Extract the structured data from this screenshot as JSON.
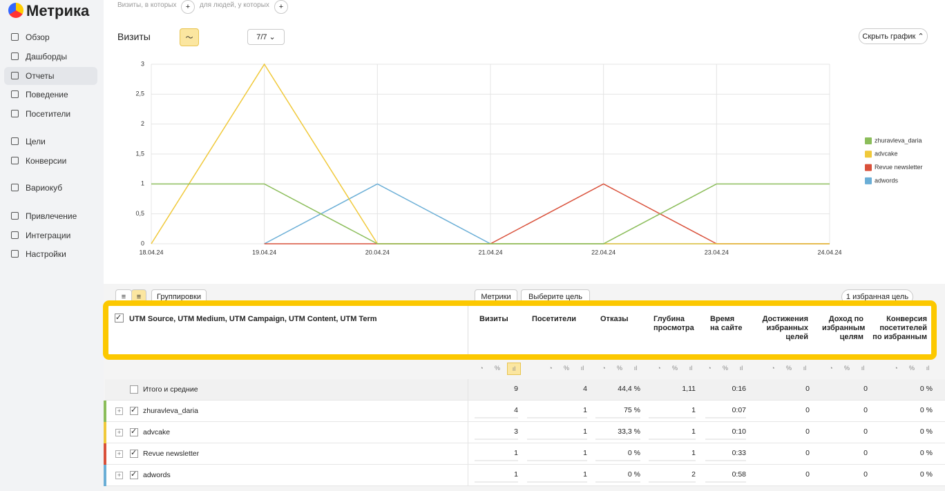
{
  "sidebar": {
    "logo": "Метрика",
    "nav": [
      "Обзор",
      "Дашборды",
      "Отчеты",
      "Поведение",
      "Посетители",
      "Цели",
      "Конверсии",
      "Вариокуб",
      "Привлечение",
      "Интеграции",
      "Настройки"
    ],
    "active": 2
  },
  "filters": [
    "Визиты, в которых",
    "для людей, у которых"
  ],
  "chart_header": {
    "title": "Визиты",
    "segments": "7/7",
    "hide_button": "Скрыть график"
  },
  "chart_data": {
    "type": "line",
    "categories": [
      "18.04.24",
      "19.04.24",
      "20.04.24",
      "21.04.24",
      "22.04.24",
      "23.04.24",
      "24.04.24"
    ],
    "x_label_colors": [
      "#333333",
      "#333333",
      "#a0282d",
      "#a0282d",
      "#333333",
      "#333333",
      "#333333"
    ],
    "series": [
      {
        "name": "zhuravleva_daria",
        "color": "#8bbd5a",
        "values": [
          1,
          1,
          0,
          0,
          0,
          1,
          1
        ]
      },
      {
        "name": "advcake",
        "color": "#f0c93a",
        "values": [
          0,
          3,
          0,
          0,
          0,
          0,
          0
        ]
      },
      {
        "name": "Revue newsletter",
        "color": "#d9503a",
        "values": [
          null,
          0,
          0,
          0,
          1,
          0,
          0
        ]
      },
      {
        "name": "adwords",
        "color": "#6aaed6",
        "values": [
          null,
          0,
          1,
          0,
          0,
          0,
          0
        ]
      }
    ],
    "ylim": [
      0,
      3
    ],
    "yticks": [
      0,
      {
        "value": 0.5,
        "label": "0,5"
      },
      1,
      {
        "value": 1.5,
        "label": "1,5"
      },
      2,
      {
        "value": 2.5,
        "label": "2,5"
      },
      3
    ],
    "grid": true,
    "legend": "right"
  },
  "table": {
    "buttons": {
      "grouping": "Группировки",
      "metrics": "Метрики",
      "goal": "Выберите цель",
      "favorite": "1 избранная цель"
    },
    "dimension_header": "UTM Source, UTM Medium, UTM Campaign, UTM Content, UTM Term",
    "columns": [
      "Визиты",
      "Посетители",
      "Отказы",
      "Глубина просмотра",
      "Время на сайте",
      "Достижения избранных целей",
      "Доход по избранным целям",
      "Конверсия посетителей по избранным"
    ],
    "total": {
      "label": "Итого и средние",
      "cells": [
        "9",
        "4",
        "44,4 %",
        "1,11",
        "0:16",
        "0",
        "0",
        "0 %"
      ]
    },
    "rows": [
      {
        "label": "zhuravleva_daria",
        "color": "#8bbd5a",
        "cells": [
          "4",
          "1",
          "75 %",
          "1",
          "0:07",
          "0",
          "0",
          "0 %"
        ]
      },
      {
        "label": "advcake",
        "color": "#f0c93a",
        "cells": [
          "3",
          "1",
          "33,3 %",
          "1",
          "0:10",
          "0",
          "0",
          "0 %"
        ]
      },
      {
        "label": "Revue newsletter",
        "color": "#d9503a",
        "cells": [
          "1",
          "1",
          "0 %",
          "1",
          "0:33",
          "0",
          "0",
          "0 %"
        ]
      },
      {
        "label": "adwords",
        "color": "#6aaed6",
        "cells": [
          "1",
          "1",
          "0 %",
          "2",
          "0:58",
          "0",
          "0",
          "0 %"
        ]
      }
    ]
  }
}
